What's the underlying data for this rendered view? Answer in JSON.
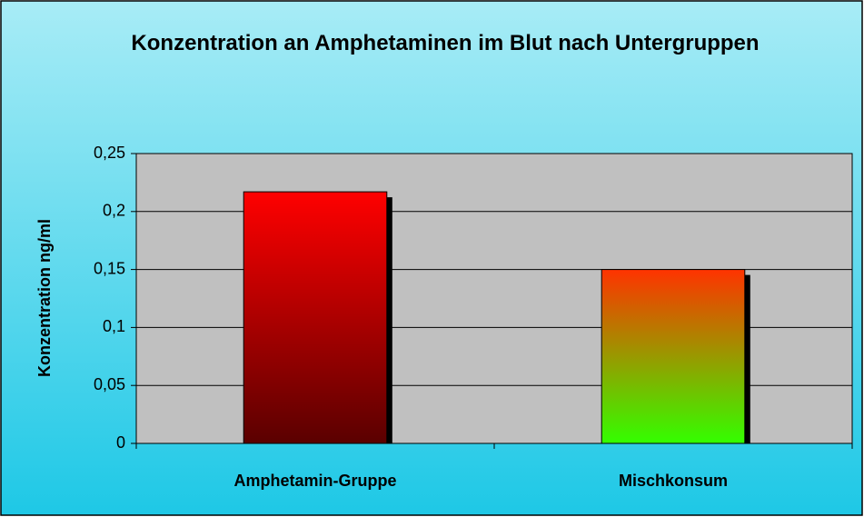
{
  "chart_data": {
    "type": "bar",
    "title": "Konzentration an Amphetaminen im Blut nach Untergruppen",
    "y_label": "Konzentration ng/ml",
    "categories": [
      "Amphetamin-Gruppe",
      "Mischkonsum"
    ],
    "values": [
      0.217,
      0.15
    ],
    "colors": [
      [
        "#ff0000",
        "#5a0000"
      ],
      [
        "#ff3300",
        "#33ff00"
      ]
    ],
    "ylim": [
      0,
      0.25
    ],
    "yticks": [
      0,
      {
        "value": 0.05,
        "label": "0,05"
      },
      {
        "value": 0.1,
        "label": "0,1"
      },
      {
        "value": 0.15,
        "label": "0,15"
      },
      {
        "value": 0.2,
        "label": "0,2"
      },
      {
        "value": 0.25,
        "label": "0,25"
      }
    ],
    "grid": true
  }
}
